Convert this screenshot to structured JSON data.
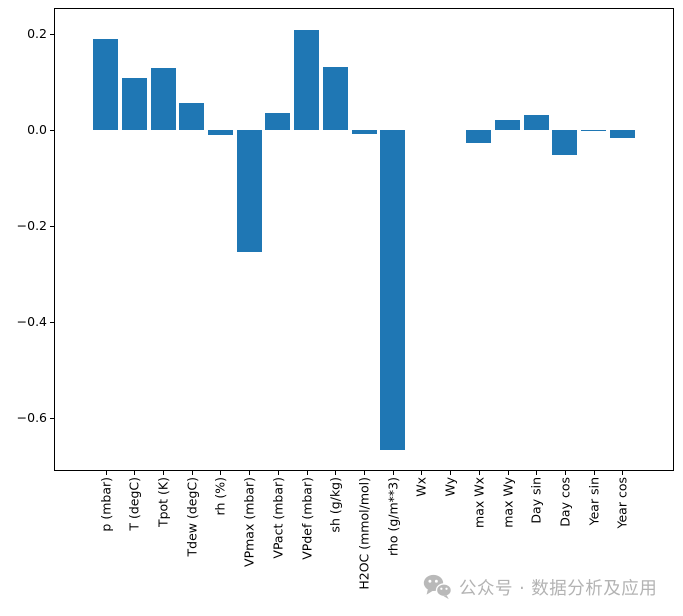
{
  "chart_data": {
    "type": "bar",
    "title": "",
    "xlabel": "",
    "ylabel": "",
    "categories": [
      "p (mbar)",
      "T (degC)",
      "Tpot (K)",
      "Tdew (degC)",
      "rh (%)",
      "VPmax (mbar)",
      "VPact (mbar)",
      "VPdef (mbar)",
      "sh (g/kg)",
      "H2OC (mmol/mol)",
      "rho (g/m**3)",
      "Wx",
      "Wy",
      "max Wx",
      "max Wy",
      "Day sin",
      "Day cos",
      "Year sin",
      "Year cos"
    ],
    "values": [
      0.19,
      0.108,
      0.129,
      0.056,
      -0.01,
      -0.255,
      0.035,
      0.208,
      0.132,
      -0.008,
      -0.667,
      0.0,
      0.0,
      -0.028,
      0.021,
      0.031,
      -0.053,
      0.001,
      -0.017
    ],
    "ylim": [
      -0.71,
      0.254
    ],
    "yticks": [
      0.2,
      0.0,
      -0.2,
      -0.4,
      -0.6
    ],
    "xtick_rotation_deg": 90,
    "grid": false,
    "legend": "none",
    "bar_color": "#1f77b4",
    "axis_color": "#000000",
    "background_color": "#ffffff"
  },
  "watermark": {
    "icon": "wechat-icon",
    "text": "公众号 · 数据分析及应用",
    "color": "#b3b3b3"
  }
}
